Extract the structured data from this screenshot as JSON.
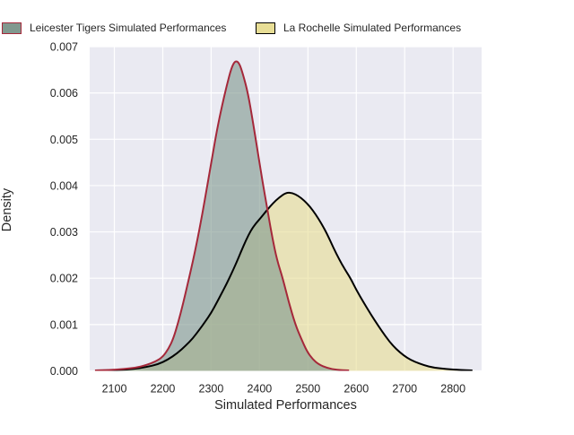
{
  "legend": {
    "items": [
      {
        "label": "Leicester Tigers Simulated Performances",
        "fill": "#81998f",
        "border": "#a5283a"
      },
      {
        "label": "La Rochelle Simulated Performances",
        "fill": "#e8de96",
        "border": "#000000"
      }
    ]
  },
  "axes": {
    "xlabel": "Simulated Performances",
    "ylabel": "Density"
  },
  "style": {
    "figure_bg": "#ffffff",
    "axes_bg": "#eaeaf2",
    "grid_color": "#ffffff",
    "text_color": "#262626",
    "tick_font_px": 12.5
  },
  "chart_data": {
    "type": "area",
    "subtype": "kde-density",
    "title": "",
    "xlabel": "Simulated Performances",
    "ylabel": "Density",
    "xlim": [
      2049,
      2859
    ],
    "ylim": [
      0,
      0.007
    ],
    "xticks": [
      2100,
      2200,
      2300,
      2400,
      2500,
      2600,
      2700,
      2800
    ],
    "yticks": [
      0.0,
      0.001,
      0.002,
      0.003,
      0.004,
      0.005,
      0.006,
      0.007
    ],
    "grid": true,
    "legend_position": "top",
    "series": [
      {
        "name": "Leicester Tigers Simulated Performances",
        "line_color": "#a5283a",
        "fill_color": "rgba(129,153,143,0.62)",
        "peak": {
          "x": 2350,
          "density": 0.0067
        },
        "points": [
          [
            2060,
            1e-05
          ],
          [
            2090,
            2e-05
          ],
          [
            2120,
            4e-05
          ],
          [
            2145,
            7e-05
          ],
          [
            2165,
            0.00012
          ],
          [
            2185,
            0.0002
          ],
          [
            2200,
            0.0003
          ],
          [
            2212,
            0.00048
          ],
          [
            2222,
            0.0007
          ],
          [
            2232,
            0.00105
          ],
          [
            2242,
            0.00145
          ],
          [
            2252,
            0.0019
          ],
          [
            2262,
            0.00235
          ],
          [
            2272,
            0.00285
          ],
          [
            2282,
            0.0034
          ],
          [
            2292,
            0.004
          ],
          [
            2302,
            0.0046
          ],
          [
            2312,
            0.0052
          ],
          [
            2322,
            0.0057
          ],
          [
            2332,
            0.00615
          ],
          [
            2342,
            0.00655
          ],
          [
            2350,
            0.0067
          ],
          [
            2358,
            0.00665
          ],
          [
            2366,
            0.0064
          ],
          [
            2376,
            0.006
          ],
          [
            2386,
            0.0054
          ],
          [
            2396,
            0.00475
          ],
          [
            2406,
            0.0041
          ],
          [
            2416,
            0.0035
          ],
          [
            2426,
            0.0029
          ],
          [
            2436,
            0.0024
          ],
          [
            2448,
            0.002
          ],
          [
            2460,
            0.0015
          ],
          [
            2474,
            0.001
          ],
          [
            2486,
            0.0007
          ],
          [
            2498,
            0.00042
          ],
          [
            2510,
            0.00025
          ],
          [
            2522,
            0.00014
          ],
          [
            2540,
            6e-05
          ],
          [
            2560,
            2e-05
          ],
          [
            2585,
            1e-05
          ]
        ]
      },
      {
        "name": "La Rochelle Simulated Performances",
        "line_color": "#000000",
        "fill_color": "rgba(232,222,150,0.63)",
        "peak": {
          "x": 2455,
          "density": 0.00385
        },
        "points": [
          [
            2075,
            1e-05
          ],
          [
            2110,
            2e-05
          ],
          [
            2140,
            4e-05
          ],
          [
            2165,
            8e-05
          ],
          [
            2190,
            0.00014
          ],
          [
            2210,
            0.00024
          ],
          [
            2230,
            0.00038
          ],
          [
            2248,
            0.00055
          ],
          [
            2262,
            0.0007
          ],
          [
            2275,
            0.00088
          ],
          [
            2287,
            0.00105
          ],
          [
            2300,
            0.00125
          ],
          [
            2312,
            0.00148
          ],
          [
            2322,
            0.00168
          ],
          [
            2332,
            0.00188
          ],
          [
            2342,
            0.0021
          ],
          [
            2352,
            0.00233
          ],
          [
            2362,
            0.00258
          ],
          [
            2372,
            0.00282
          ],
          [
            2382,
            0.00303
          ],
          [
            2392,
            0.00318
          ],
          [
            2404,
            0.00332
          ],
          [
            2416,
            0.00348
          ],
          [
            2428,
            0.00362
          ],
          [
            2440,
            0.00374
          ],
          [
            2455,
            0.00385
          ],
          [
            2468,
            0.00384
          ],
          [
            2480,
            0.00378
          ],
          [
            2492,
            0.00368
          ],
          [
            2504,
            0.00355
          ],
          [
            2516,
            0.00338
          ],
          [
            2528,
            0.00318
          ],
          [
            2540,
            0.00295
          ],
          [
            2553,
            0.00265
          ],
          [
            2565,
            0.0024
          ],
          [
            2577,
            0.00218
          ],
          [
            2588,
            0.002
          ],
          [
            2600,
            0.00175
          ],
          [
            2615,
            0.00148
          ],
          [
            2630,
            0.00122
          ],
          [
            2645,
            0.00098
          ],
          [
            2660,
            0.00075
          ],
          [
            2675,
            0.00055
          ],
          [
            2690,
            0.0004
          ],
          [
            2705,
            0.00028
          ],
          [
            2720,
            0.0002
          ],
          [
            2740,
            0.00012
          ],
          [
            2760,
            7e-05
          ],
          [
            2785,
            4e-05
          ],
          [
            2815,
            2e-05
          ],
          [
            2840,
            1e-05
          ]
        ]
      }
    ]
  }
}
